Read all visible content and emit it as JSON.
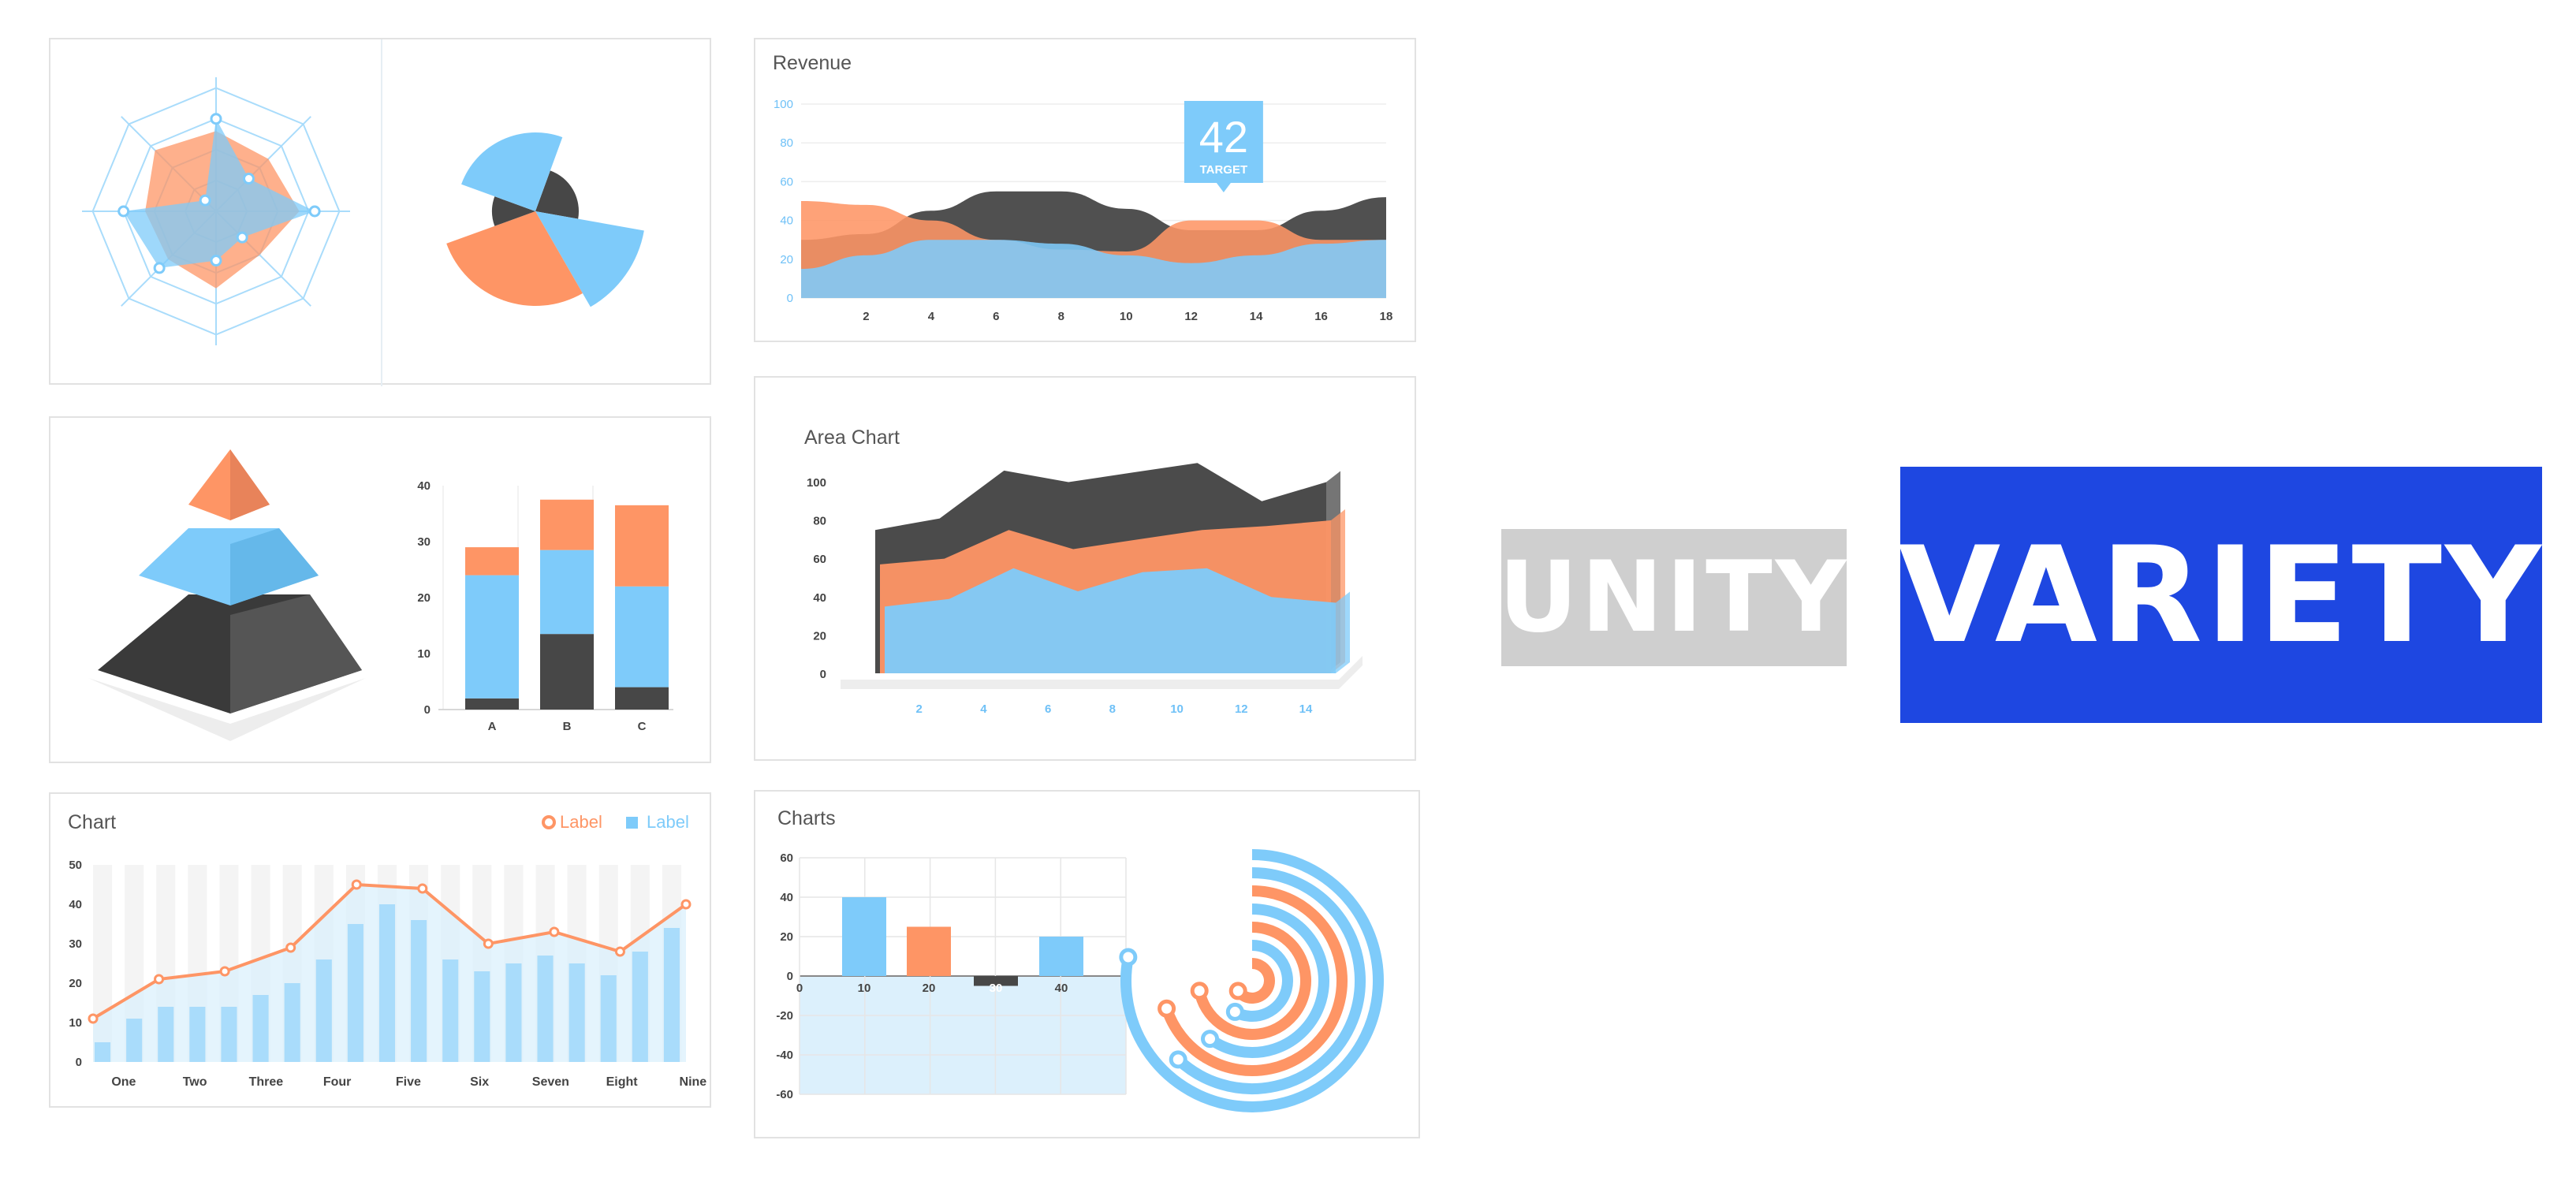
{
  "colors": {
    "blue": "#7ecbfa",
    "blue_light": "#d9effc",
    "orange": "#fe9565",
    "dark": "#474747",
    "axis_blue": "#6fc1f7",
    "badge_gray": "#cfcfcf",
    "badge_blue": "#1e47e1"
  },
  "logo": {
    "unity": "UNITY",
    "variety": "VARIETY"
  },
  "chart_data": [
    {
      "type": "radar",
      "axes_count": 8,
      "rlim": [
        0,
        4
      ],
      "series": [
        {
          "color": "orange",
          "values": [
            2.6,
            2.4,
            2.7,
            2.0,
            2.5,
            2.2,
            2.3,
            2.8
          ]
        },
        {
          "color": "blue",
          "values": [
            3.0,
            1.5,
            3.2,
            1.2,
            1.6,
            2.6,
            3.0,
            0.5
          ]
        }
      ]
    },
    {
      "type": "pie",
      "variant": "rose",
      "slices": [
        {
          "color": "dark",
          "value": 80,
          "radius": 0.55
        },
        {
          "color": "blue",
          "value": 50,
          "radius": 1.4
        },
        {
          "color": "orange",
          "value": 100,
          "radius": 1.2
        },
        {
          "color": "dark",
          "value": 40,
          "radius": 0.55
        },
        {
          "color": "blue",
          "value": 90,
          "radius": 1.0
        }
      ]
    },
    {
      "type": "area",
      "title": "Revenue",
      "x": [
        0,
        2,
        4,
        6,
        8,
        10,
        12,
        14,
        16,
        18
      ],
      "xticks": [
        2,
        4,
        6,
        8,
        10,
        12,
        14,
        16,
        18
      ],
      "yticks": [
        0,
        20,
        40,
        60,
        80,
        100
      ],
      "ylim": [
        0,
        100
      ],
      "xlim": [
        0,
        18
      ],
      "series": [
        {
          "color": "dark",
          "values": [
            30,
            33,
            45,
            55,
            55,
            46,
            35,
            35,
            45,
            52
          ]
        },
        {
          "color": "orange",
          "values": [
            50,
            48,
            40,
            30,
            25,
            24,
            40,
            40,
            30,
            30
          ]
        },
        {
          "color": "blue",
          "values": [
            15,
            22,
            30,
            30,
            28,
            22,
            18,
            22,
            28,
            30
          ]
        }
      ],
      "annotation": {
        "value": "42",
        "label": "TARGET",
        "x": 13
      }
    },
    {
      "type": "pyramid",
      "levels": [
        {
          "color": "orange"
        },
        {
          "color": "blue"
        },
        {
          "color": "dark"
        }
      ]
    },
    {
      "type": "bar",
      "stacked": true,
      "categories": [
        "A",
        "B",
        "C"
      ],
      "yticks": [
        0,
        10,
        20,
        30,
        40
      ],
      "ylim": [
        0,
        40
      ],
      "series": [
        {
          "color": "dark",
          "values": [
            2,
            13.5,
            4
          ]
        },
        {
          "color": "blue",
          "values": [
            22,
            15,
            18
          ]
        },
        {
          "color": "orange",
          "values": [
            5,
            9,
            14.5
          ]
        }
      ]
    },
    {
      "type": "area",
      "variant": "3d",
      "title": "Area Chart",
      "x": [
        0,
        2,
        4,
        6,
        8,
        10,
        12,
        14
      ],
      "xticks": [
        2,
        4,
        6,
        8,
        10,
        12,
        14
      ],
      "yticks": [
        0,
        20,
        40,
        60,
        80,
        100
      ],
      "ylim": [
        0,
        100
      ],
      "series": [
        {
          "color": "dark",
          "values": [
            60,
            66,
            91,
            85,
            90,
            95,
            75,
            85
          ]
        },
        {
          "color": "orange",
          "values": [
            42,
            45,
            60,
            50,
            55,
            60,
            62,
            65
          ]
        },
        {
          "color": "blue",
          "values": [
            20,
            24,
            40,
            28,
            38,
            40,
            25,
            22
          ]
        }
      ]
    },
    {
      "type": "bar",
      "variant": "bar+line",
      "title": "Chart",
      "legend": [
        "Label",
        "Label"
      ],
      "categories": [
        "One",
        "Two",
        "Three",
        "Four",
        "Five",
        "Six",
        "Seven",
        "Eight",
        "Nine"
      ],
      "yticks": [
        0,
        10,
        20,
        30,
        40,
        50
      ],
      "ylim": [
        0,
        50
      ],
      "bars": [
        5,
        11,
        14,
        14,
        14,
        17,
        20,
        26,
        35,
        40,
        36,
        26,
        23,
        25,
        27,
        25,
        22,
        28,
        34
      ],
      "line": [
        11,
        21,
        23,
        29,
        45,
        44,
        30,
        33,
        28,
        40
      ]
    },
    {
      "type": "bar",
      "title": "Charts",
      "categories": [
        "10",
        "20",
        "30",
        "40"
      ],
      "values": [
        40,
        25,
        -5,
        20
      ],
      "bar_colors": [
        "blue",
        "orange",
        "dark",
        "blue"
      ],
      "yticks": [
        60,
        40,
        20,
        0,
        -20,
        -40,
        -60
      ],
      "ylim": [
        -60,
        60
      ],
      "highlight_label": "30"
    },
    {
      "type": "radial",
      "rings": [
        {
          "color": "blue",
          "value": 0.78
        },
        {
          "color": "blue",
          "value": 0.62
        },
        {
          "color": "orange",
          "value": 0.7
        },
        {
          "color": "blue",
          "value": 0.6
        },
        {
          "color": "orange",
          "value": 0.72
        },
        {
          "color": "blue",
          "value": 0.58
        },
        {
          "color": "orange",
          "value": 0.65
        }
      ]
    }
  ]
}
